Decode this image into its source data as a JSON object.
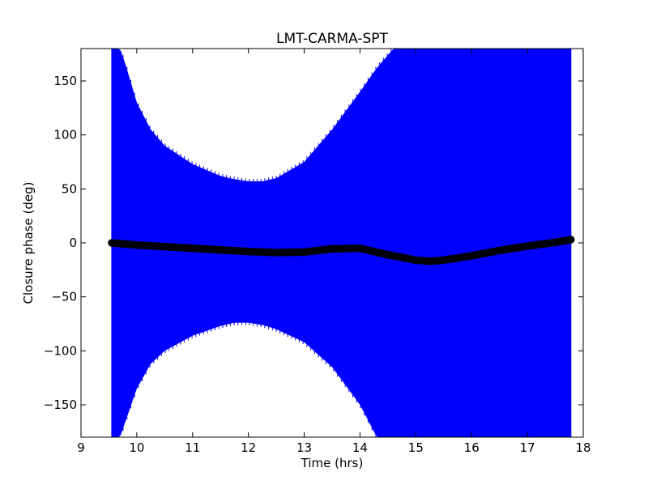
{
  "chart_data": {
    "type": "scatter",
    "title": "LMT-CARMA-SPT",
    "xlabel": "Time (hrs)",
    "ylabel": "Closure phase (deg)",
    "xlim": [
      9,
      18
    ],
    "ylim": [
      -180,
      180
    ],
    "xticks": [
      9,
      10,
      11,
      12,
      13,
      14,
      15,
      16,
      17,
      18
    ],
    "xtick_labels": [
      "9",
      "10",
      "11",
      "12",
      "13",
      "14",
      "15",
      "16",
      "17",
      "18"
    ],
    "yticks": [
      -150,
      -100,
      -50,
      0,
      50,
      100,
      150
    ],
    "ytick_labels": [
      "−150",
      "−100",
      "−50",
      "0",
      "50",
      "100",
      "150"
    ],
    "grid": false,
    "series": [
      {
        "kind": "points",
        "marker": "circle",
        "color": "#000000",
        "x": [
          9.55,
          10.0,
          10.5,
          11.0,
          11.5,
          12.0,
          12.5,
          13.0,
          13.5,
          14.0,
          14.5,
          15.0,
          15.25,
          15.5,
          16.0,
          16.5,
          17.0,
          17.5,
          17.78
        ],
        "y": [
          0,
          -2,
          -3.5,
          -5,
          -6.5,
          -8,
          -9,
          -8.5,
          -5.5,
          -5,
          -11,
          -16,
          -17,
          -16,
          -12,
          -7,
          -3,
          0.5,
          3
        ]
      },
      {
        "kind": "errorband",
        "color": "#0000ff",
        "x": [
          9.55,
          9.7,
          9.8,
          10.0,
          10.25,
          10.5,
          11.0,
          11.5,
          11.75,
          12.0,
          12.25,
          12.5,
          13.0,
          13.5,
          14.0,
          14.3,
          14.6,
          15.0,
          16.0,
          17.0,
          17.78
        ],
        "upper": [
          180,
          180,
          165,
          130,
          105,
          90,
          73,
          62,
          59,
          57,
          57,
          60,
          75,
          105,
          140,
          162,
          180,
          180,
          180,
          180,
          180
        ],
        "lower": [
          -180,
          -180,
          -165,
          -135,
          -112,
          -100,
          -86,
          -77,
          -74,
          -74,
          -76,
          -80,
          -92,
          -115,
          -150,
          -180,
          -180,
          -180,
          -180,
          -180,
          -180
        ]
      }
    ]
  }
}
